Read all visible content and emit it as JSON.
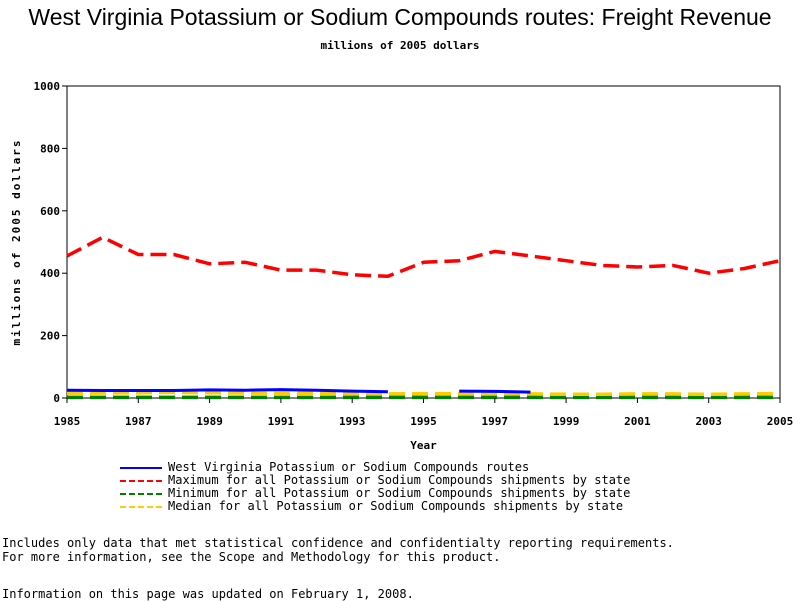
{
  "page": {
    "title": "West Virginia Potassium or Sodium Compounds routes: Freight Revenue",
    "subtitle": "millions of 2005 dollars",
    "note_line1": "Includes only data that met statistical confidence and confidentialty reporting requirements.",
    "note_line2": "For more information, see the Scope and Methodology for this product.",
    "updated": "Information on this page was updated on February 1, 2008."
  },
  "chart_data": {
    "type": "line",
    "title": "West Virginia Potassium or Sodium Compounds routes: Freight Revenue",
    "subtitle": "millions of 2005 dollars",
    "xlabel": "Year",
    "ylabel": "millions of 2005 dollars",
    "xlim": [
      1985,
      2005
    ],
    "ylim": [
      0,
      1000
    ],
    "x_ticks": [
      "1985",
      "1987",
      "1989",
      "1991",
      "1993",
      "1995",
      "1997",
      "1999",
      "2001",
      "2003",
      "2005"
    ],
    "y_ticks": [
      "0",
      "200",
      "400",
      "600",
      "800",
      "1000"
    ],
    "grid": false,
    "legend_position": "bottom",
    "x": [
      1985,
      1986,
      1987,
      1988,
      1989,
      1990,
      1991,
      1992,
      1993,
      1994,
      1995,
      1996,
      1997,
      1998,
      1999,
      2000,
      2001,
      2002,
      2003,
      2004,
      2005
    ],
    "series": [
      {
        "name": "West Virginia Potassium or Sodium Compounds routes",
        "color": "#0000ff",
        "dash": "solid",
        "values": [
          25,
          24,
          24,
          24,
          26,
          25,
          27,
          25,
          22,
          20,
          null,
          22,
          21,
          19,
          null,
          null,
          null,
          null,
          null,
          null,
          null
        ]
      },
      {
        "name": "Maximum for all Potassium or Sodium Compounds shipments by state",
        "color": "#ff0000",
        "dash": "dashed",
        "values": [
          455,
          515,
          460,
          460,
          430,
          435,
          410,
          410,
          395,
          390,
          435,
          440,
          470,
          455,
          440,
          425,
          420,
          425,
          400,
          415,
          440
        ]
      },
      {
        "name": "Minimum for all Potassium or Sodium Compounds shipments by state",
        "color": "#008000",
        "dash": "dashed",
        "values": [
          2,
          2,
          2,
          2,
          2,
          2,
          2,
          2,
          2,
          2,
          2,
          2,
          2,
          2,
          2,
          2,
          2,
          2,
          2,
          2,
          2
        ]
      },
      {
        "name": "Median for all Potassium or Sodium Compounds shipments by state",
        "color": "#ffcc00",
        "dash": "dashed",
        "values": [
          15,
          16,
          17,
          18,
          17,
          16,
          15,
          15,
          14,
          13,
          14,
          14,
          14,
          13,
          12,
          12,
          13,
          13,
          12,
          13,
          14
        ]
      }
    ]
  }
}
